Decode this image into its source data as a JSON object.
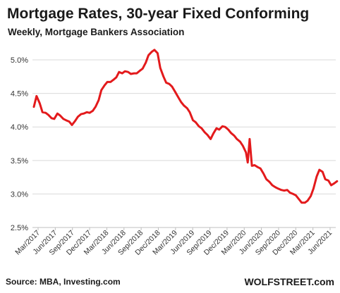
{
  "title": "Mortgage Rates, 30-year Fixed Conforming",
  "subtitle": "Weekly, Mortgage Bankers Association",
  "source": "Source: MBA, Investing.com",
  "brand": "WOLFSTREET.com",
  "colors": {
    "line": "#e31a1c",
    "grid": "#d9d9d9",
    "axis": "#bfbfbf",
    "text": "#1a1a1a"
  },
  "chart_data": {
    "type": "line",
    "title": "Mortgage Rates, 30-year Fixed Conforming",
    "subtitle": "Weekly, Mortgage Bankers Association",
    "xlabel": "",
    "ylabel": "",
    "ylim": [
      2.5,
      5.2
    ],
    "yticks": [
      "2.5%",
      "3.0%",
      "3.5%",
      "4.0%",
      "4.5%",
      "5.0%"
    ],
    "ytick_values": [
      2.5,
      3.0,
      3.5,
      4.0,
      4.5,
      5.0
    ],
    "xlim": [
      "2017-03",
      "2021-06"
    ],
    "xticks": [
      "Mar/2017",
      "Jun/2017",
      "Sep/2017",
      "Dec/2017",
      "Mar/2018",
      "Jun/2018",
      "Sep/2018",
      "Dec/2018",
      "Mar/2019",
      "Jun/2019",
      "Sep/2019",
      "Dec/2019",
      "Mar/2020",
      "Jun/2020",
      "Sep/2020",
      "Dec/2020",
      "Mar/2021",
      "Jun/2021"
    ],
    "grid": "horizontal",
    "series": [
      {
        "color": "#e31a1c",
        "x": [
          "2017-03-01",
          "2017-03-15",
          "2017-04-01",
          "2017-04-15",
          "2017-05-01",
          "2017-05-15",
          "2017-06-01",
          "2017-06-15",
          "2017-07-01",
          "2017-07-15",
          "2017-08-01",
          "2017-08-15",
          "2017-09-01",
          "2017-09-15",
          "2017-10-01",
          "2017-10-15",
          "2017-11-01",
          "2017-11-15",
          "2017-12-01",
          "2017-12-15",
          "2018-01-01",
          "2018-01-15",
          "2018-02-01",
          "2018-02-15",
          "2018-03-01",
          "2018-03-15",
          "2018-04-01",
          "2018-04-15",
          "2018-05-01",
          "2018-05-15",
          "2018-06-01",
          "2018-06-15",
          "2018-07-01",
          "2018-07-15",
          "2018-08-01",
          "2018-08-15",
          "2018-09-01",
          "2018-09-15",
          "2018-10-01",
          "2018-10-15",
          "2018-11-01",
          "2018-11-15",
          "2018-12-01",
          "2018-12-15",
          "2019-01-01",
          "2019-01-15",
          "2019-02-01",
          "2019-02-15",
          "2019-03-01",
          "2019-03-15",
          "2019-04-01",
          "2019-04-15",
          "2019-05-01",
          "2019-05-15",
          "2019-06-01",
          "2019-06-15",
          "2019-07-01",
          "2019-07-15",
          "2019-08-01",
          "2019-08-15",
          "2019-09-01",
          "2019-09-15",
          "2019-10-01",
          "2019-10-15",
          "2019-11-01",
          "2019-11-15",
          "2019-12-01",
          "2019-12-15",
          "2020-01-01",
          "2020-01-15",
          "2020-02-01",
          "2020-02-15",
          "2020-03-01",
          "2020-03-10",
          "2020-03-20",
          "2020-04-01",
          "2020-04-15",
          "2020-05-01",
          "2020-05-15",
          "2020-06-01",
          "2020-06-15",
          "2020-07-01",
          "2020-07-15",
          "2020-08-01",
          "2020-08-15",
          "2020-09-01",
          "2020-09-15",
          "2020-10-01",
          "2020-10-15",
          "2020-11-01",
          "2020-11-15",
          "2020-12-01",
          "2020-12-15",
          "2021-01-01",
          "2021-01-15",
          "2021-02-01",
          "2021-02-15",
          "2021-03-01",
          "2021-03-15",
          "2021-04-01",
          "2021-04-15",
          "2021-05-01",
          "2021-05-15",
          "2021-06-01",
          "2021-06-15"
        ],
        "y": [
          4.3,
          4.46,
          4.35,
          4.22,
          4.21,
          4.18,
          4.13,
          4.12,
          4.2,
          4.17,
          4.12,
          4.1,
          4.08,
          4.03,
          4.09,
          4.15,
          4.19,
          4.2,
          4.22,
          4.21,
          4.24,
          4.3,
          4.4,
          4.55,
          4.62,
          4.67,
          4.67,
          4.7,
          4.74,
          4.82,
          4.8,
          4.83,
          4.82,
          4.79,
          4.8,
          4.8,
          4.84,
          4.87,
          4.96,
          5.07,
          5.12,
          5.15,
          5.1,
          4.88,
          4.75,
          4.66,
          4.64,
          4.6,
          4.52,
          4.45,
          4.37,
          4.32,
          4.28,
          4.22,
          4.1,
          4.07,
          4.01,
          3.98,
          3.92,
          3.88,
          3.82,
          3.9,
          3.98,
          3.96,
          4.01,
          4.0,
          3.96,
          3.91,
          3.87,
          3.82,
          3.78,
          3.72,
          3.62,
          3.47,
          3.82,
          3.42,
          3.43,
          3.4,
          3.38,
          3.3,
          3.22,
          3.18,
          3.13,
          3.1,
          3.08,
          3.06,
          3.05,
          3.06,
          3.02,
          3.0,
          2.98,
          2.92,
          2.87,
          2.87,
          2.9,
          2.97,
          3.08,
          3.26,
          3.36,
          3.33,
          3.22,
          3.2,
          3.13,
          3.16,
          3.19
        ]
      }
    ]
  }
}
